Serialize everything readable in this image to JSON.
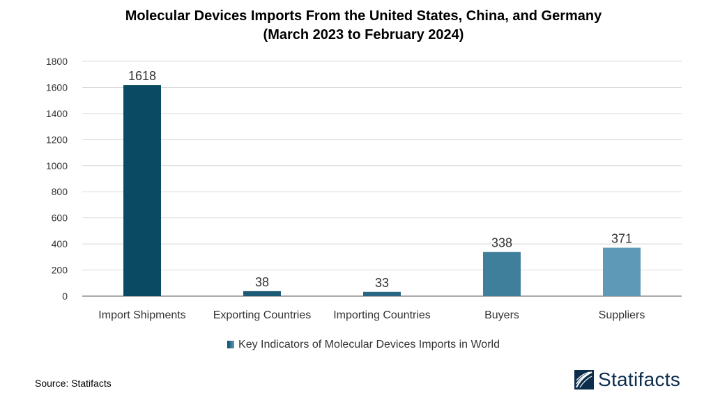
{
  "title_line1": "Molecular Devices Imports From the United States, China, and Germany",
  "title_line2": "(March 2023 to February 2024)",
  "source": "Source: Statifacts",
  "brand": "Statifacts",
  "colors": {
    "bars": [
      "#0b4a63",
      "#1d5a75",
      "#2a6684",
      "#3f7f9c",
      "#5e9ab8"
    ],
    "grid": "#d9d9d9",
    "axis": "#555555"
  },
  "chart_data": {
    "type": "bar",
    "title": "Molecular Devices Imports From the United States, China, and Germany (March 2023 to February 2024)",
    "categories": [
      "Import Shipments",
      "Exporting Countries",
      "Importing Countries",
      "Buyers",
      "Suppliers"
    ],
    "series": [
      {
        "name": "Key Indicators of Molecular Devices Imports in World",
        "values": [
          1618,
          38,
          33,
          338,
          371
        ]
      }
    ],
    "ylim": [
      0,
      1800
    ],
    "yticks": [
      0,
      200,
      400,
      600,
      800,
      1000,
      1200,
      1400,
      1600,
      1800
    ],
    "grid": true,
    "legend": "bottom",
    "data_labels": true
  }
}
